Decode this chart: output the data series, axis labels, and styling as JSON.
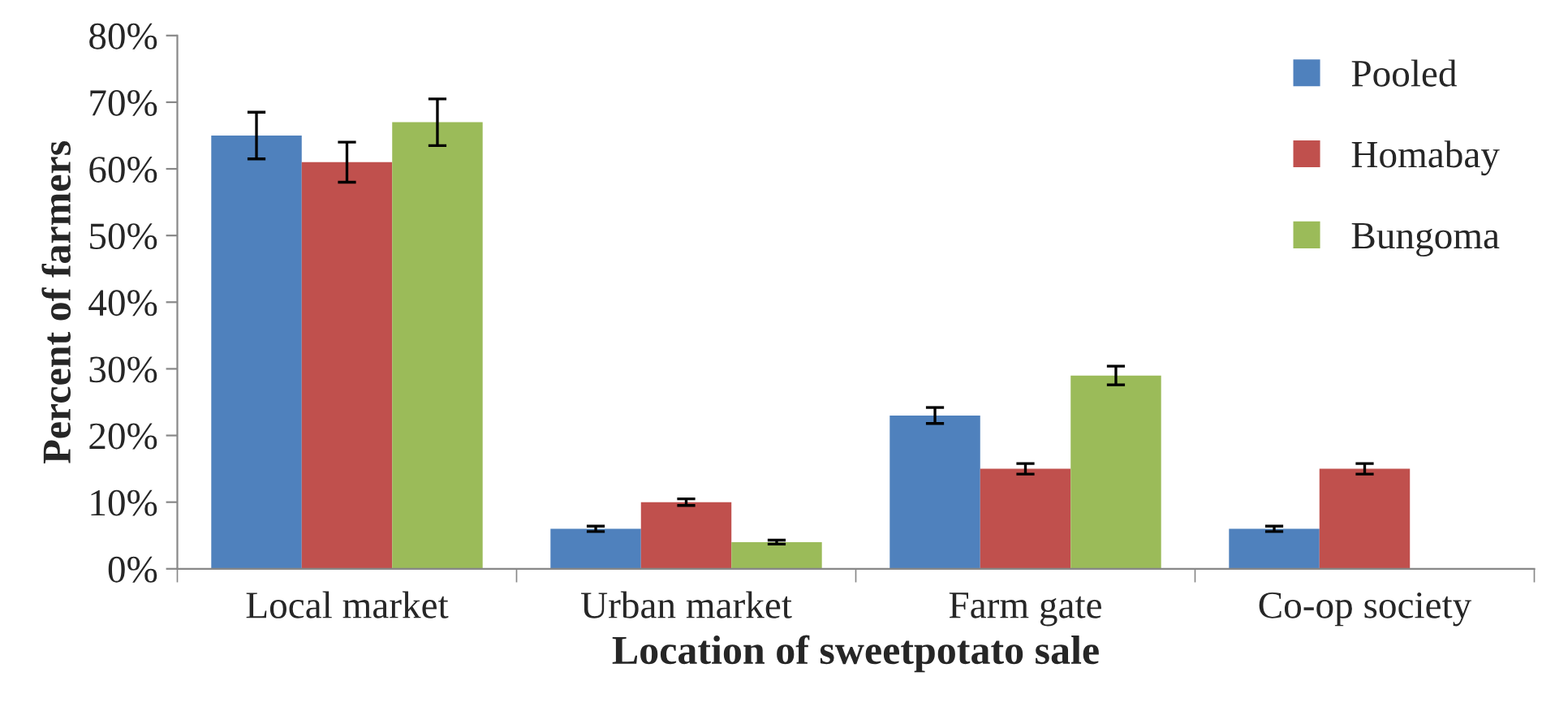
{
  "chart_data": {
    "type": "bar",
    "xlabel": "Location of sweetpotato sale",
    "ylabel": "Percent of farmers",
    "categories": [
      "Local market",
      "Urban market",
      "Farm gate",
      "Co-op society"
    ],
    "series": [
      {
        "name": "Pooled",
        "color": "#4f81bd",
        "values": [
          65,
          6,
          23,
          6
        ],
        "errors": [
          3.5,
          0.4,
          1.2,
          0.4
        ]
      },
      {
        "name": "Homabay",
        "color": "#c0504d",
        "values": [
          61,
          10,
          15,
          15
        ],
        "errors": [
          3,
          0.5,
          0.8,
          0.8
        ]
      },
      {
        "name": "Bungoma",
        "color": "#9bbb59",
        "values": [
          67,
          4,
          29,
          null
        ],
        "errors": [
          3.5,
          0.3,
          1.4,
          null
        ]
      }
    ],
    "ylim": [
      0,
      80
    ],
    "yticks": [
      {
        "value": 0,
        "label": "0%"
      },
      {
        "value": 10,
        "label": "10%"
      },
      {
        "value": 20,
        "label": "20%"
      },
      {
        "value": 30,
        "label": "30%"
      },
      {
        "value": 40,
        "label": "40%"
      },
      {
        "value": 50,
        "label": "50%"
      },
      {
        "value": 60,
        "label": "60%"
      },
      {
        "value": 70,
        "label": "70%"
      },
      {
        "value": 80,
        "label": "80%"
      }
    ],
    "grid": false,
    "legend": "top right"
  }
}
